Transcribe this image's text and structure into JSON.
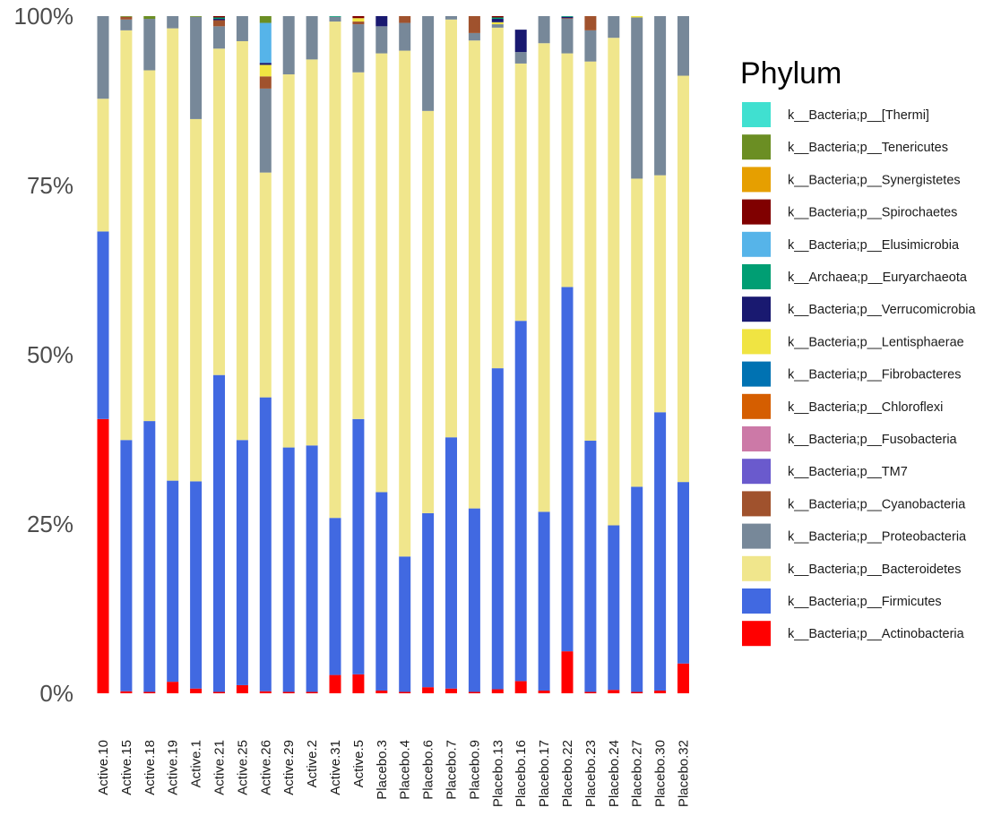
{
  "chart_data": {
    "type": "bar",
    "stacked": true,
    "percent": true,
    "ylim": [
      0,
      1
    ],
    "yticks": [
      0,
      0.25,
      0.5,
      0.75,
      1
    ],
    "ytick_labels": [
      "0%",
      "25%",
      "50%",
      "75%",
      "100%"
    ],
    "grid": false,
    "legend_title": "Phylum",
    "legend_position": "right",
    "categories": [
      "Active.10",
      "Active.15",
      "Active.18",
      "Active.19",
      "Active.1",
      "Active.21",
      "Active.25",
      "Active.26",
      "Active.29",
      "Active.2",
      "Active.31",
      "Active.5",
      "Placebo.3",
      "Placebo.4",
      "Placebo.6",
      "Placebo.7",
      "Placebo.9",
      "Placebo.13",
      "Placebo.16",
      "Placebo.17",
      "Placebo.22",
      "Placebo.23",
      "Placebo.24",
      "Placebo.27",
      "Placebo.30",
      "Placebo.32"
    ],
    "series": [
      {
        "name": "k__Bacteria;p__Actinobacteria",
        "color": "#FF0000",
        "values": [
          0.405,
          0.003,
          0.002,
          0.017,
          0.007,
          0.002,
          0.012,
          0.003,
          0.002,
          0.002,
          0.027,
          0.028,
          0.004,
          0.002,
          0.009,
          0.007,
          0.002,
          0.006,
          0.018,
          0.004,
          0.062,
          0.002,
          0.005,
          0.002,
          0.004,
          0.044
        ]
      },
      {
        "name": "k__Bacteria;p__Firmicutes",
        "color": "#4169E1",
        "values": [
          0.277,
          0.371,
          0.4,
          0.297,
          0.306,
          0.468,
          0.362,
          0.434,
          0.361,
          0.364,
          0.232,
          0.377,
          0.293,
          0.2,
          0.257,
          0.371,
          0.271,
          0.474,
          0.532,
          0.264,
          0.538,
          0.371,
          0.243,
          0.303,
          0.411,
          0.268
        ]
      },
      {
        "name": "k__Bacteria;p__Bacteroidetes",
        "color": "#F0E68C",
        "values": [
          0.196,
          0.605,
          0.518,
          0.668,
          0.535,
          0.482,
          0.589,
          0.332,
          0.551,
          0.57,
          0.733,
          0.512,
          0.648,
          0.747,
          0.594,
          0.617,
          0.691,
          0.503,
          0.38,
          0.692,
          0.345,
          0.56,
          0.72,
          0.455,
          0.35,
          0.6
        ]
      },
      {
        "name": "k__Bacteria;p__Proteobacteria",
        "color": "#778899",
        "values": [
          0.122,
          0.016,
          0.076,
          0.018,
          0.151,
          0.033,
          0.037,
          0.124,
          0.086,
          0.064,
          0.007,
          0.071,
          0.04,
          0.041,
          0.14,
          0.005,
          0.011,
          0.005,
          0.017,
          0.04,
          0.051,
          0.046,
          0.032,
          0.238,
          0.235,
          0.088
        ]
      },
      {
        "name": "k__Bacteria;p__Cyanobacteria",
        "color": "#A0522D",
        "values": [
          0,
          0.004,
          0,
          0,
          0,
          0.009,
          0,
          0.018,
          0,
          0,
          0,
          0.004,
          0,
          0.01,
          0,
          0,
          0.025,
          0,
          0,
          0,
          0.001,
          0.021,
          0,
          0,
          0,
          0
        ]
      },
      {
        "name": "k__Bacteria;p__TM7",
        "color": "#6A5ACD",
        "values": [
          0,
          0,
          0,
          0,
          0,
          0,
          0,
          0,
          0,
          0,
          0,
          0,
          0,
          0,
          0,
          0,
          0,
          0,
          0,
          0,
          0,
          0,
          0,
          0,
          0,
          0
        ]
      },
      {
        "name": "k__Bacteria;p__Fusobacteria",
        "color": "#CC79A7",
        "values": [
          0,
          0,
          0,
          0,
          0,
          0,
          0,
          0,
          0,
          0,
          0,
          0,
          0,
          0,
          0,
          0,
          0,
          0,
          0,
          0,
          0,
          0,
          0,
          0,
          0,
          0
        ]
      },
      {
        "name": "k__Bacteria;p__Chloroflexi",
        "color": "#D55E00",
        "values": [
          0,
          0,
          0,
          0,
          0,
          0,
          0,
          0,
          0,
          0,
          0,
          0,
          0,
          0,
          0,
          0,
          0,
          0,
          0,
          0,
          0,
          0,
          0,
          0,
          0,
          0
        ]
      },
      {
        "name": "k__Bacteria;p__Fibrobacteres",
        "color": "#0072B2",
        "values": [
          0,
          0,
          0,
          0,
          0,
          0,
          0,
          0,
          0,
          0,
          0,
          0,
          0,
          0,
          0,
          0,
          0,
          0,
          0,
          0,
          0,
          0,
          0,
          0,
          0,
          0
        ]
      },
      {
        "name": "k__Bacteria;p__Lentisphaerae",
        "color": "#F0E442",
        "values": [
          0,
          0,
          0,
          0,
          0,
          0,
          0,
          0.017,
          0,
          0,
          0,
          0.005,
          0,
          0,
          0,
          0,
          0,
          0.003,
          0,
          0,
          0,
          0,
          0,
          0.002,
          0,
          0
        ]
      },
      {
        "name": "k__Bacteria;p__Verrucomicrobia",
        "color": "#191970",
        "values": [
          0,
          0,
          0,
          0,
          0,
          0.002,
          0,
          0.003,
          0,
          0,
          0,
          0,
          0.015,
          0,
          0,
          0,
          0,
          0.005,
          0.033,
          0,
          0.002,
          0,
          0,
          0,
          0,
          0
        ]
      },
      {
        "name": "k__Archaea;p__Euryarchaeota",
        "color": "#009E73",
        "values": [
          0,
          0,
          0,
          0,
          0,
          0.002,
          0,
          0,
          0,
          0,
          0.001,
          0,
          0,
          0,
          0,
          0,
          0,
          0.002,
          0,
          0,
          0.001,
          0,
          0,
          0,
          0,
          0
        ]
      },
      {
        "name": "k__Bacteria;p__Elusimicrobia",
        "color": "#56B4E9",
        "values": [
          0,
          0,
          0,
          0,
          0,
          0,
          0,
          0.059,
          0,
          0,
          0,
          0,
          0,
          0,
          0,
          0,
          0,
          0,
          0,
          0,
          0,
          0,
          0,
          0,
          0,
          0
        ]
      },
      {
        "name": "k__Bacteria;p__Spirochaetes",
        "color": "#800000",
        "values": [
          0,
          0,
          0,
          0,
          0,
          0.002,
          0,
          0,
          0,
          0,
          0,
          0.003,
          0,
          0,
          0,
          0,
          0,
          0.002,
          0,
          0,
          0,
          0,
          0,
          0,
          0,
          0
        ]
      },
      {
        "name": "k__Bacteria;p__Synergistetes",
        "color": "#E69F00",
        "values": [
          0,
          0,
          0,
          0,
          0,
          0,
          0,
          0,
          0,
          0,
          0,
          0,
          0,
          0,
          0,
          0,
          0,
          0,
          0,
          0,
          0,
          0,
          0,
          0,
          0,
          0
        ]
      },
      {
        "name": "k__Bacteria;p__Tenericutes",
        "color": "#6B8E23",
        "values": [
          0,
          0.001,
          0.004,
          0,
          0.001,
          0,
          0,
          0.01,
          0,
          0,
          0,
          0,
          0,
          0,
          0,
          0,
          0,
          0,
          0,
          0,
          0,
          0,
          0,
          0,
          0,
          0
        ]
      },
      {
        "name": "k__Bacteria;p__[Thermi]",
        "color": "#40E0D0",
        "values": [
          0,
          0,
          0,
          0,
          0,
          0,
          0,
          0,
          0,
          0,
          0,
          0,
          0,
          0,
          0,
          0,
          0,
          0,
          0,
          0,
          0,
          0,
          0,
          0,
          0,
          0
        ]
      }
    ]
  }
}
